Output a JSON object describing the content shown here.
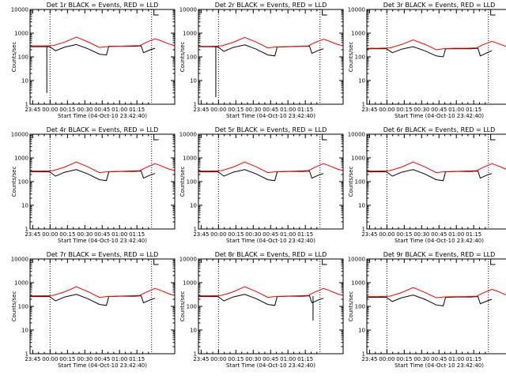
{
  "chart_data": [
    {
      "type": "line",
      "title": "Det 1r BLACK = Events, RED = LLD",
      "xlabel": "Start Time (04-Oct-10 23:42:40)",
      "ylabel": "Counts/sec",
      "yscale": "log",
      "ylim": [
        1,
        10000
      ],
      "xticklabels": [
        "23:45",
        "00:00",
        "00:15",
        "00:30",
        "00:45",
        "01:00",
        "01:15"
      ],
      "yticklabels": [
        "1",
        "10",
        "100",
        "1000",
        "10000"
      ],
      "vertical_markers_min": [
        17.3,
        105
      ],
      "events_drop_min": 14.5,
      "events_drop_value": 3,
      "series": [
        {
          "name": "Events",
          "color": "#000000",
          "x": [
            0,
            14,
            17,
            22,
            30,
            40,
            50,
            60,
            66,
            68,
            78,
            90,
            96,
            98,
            104,
            108
          ],
          "y": [
            270,
            270,
            270,
            180,
            260,
            330,
            220,
            130,
            120,
            280,
            280,
            280,
            290,
            150,
            200,
            230
          ]
        },
        {
          "name": "LLD",
          "color": "#ff0000",
          "x": [
            0,
            10,
            20,
            30,
            40,
            50,
            60,
            66,
            75,
            85,
            95,
            100,
            108,
            112,
            120,
            125
          ],
          "y": [
            290,
            290,
            300,
            420,
            680,
            430,
            250,
            270,
            280,
            290,
            300,
            400,
            580,
            500,
            350,
            300
          ]
        }
      ]
    },
    {
      "type": "line",
      "title": "Det 2r BLACK = Events, RED = LLD",
      "xlabel": "Start Time (04-Oct-10 23:42:40)",
      "ylabel": "Counts/sec",
      "yscale": "log",
      "ylim": [
        1,
        10000
      ],
      "xticklabels": [
        "23:45",
        "00:00",
        "00:15",
        "00:30",
        "00:45",
        "01:00",
        "01:15"
      ],
      "yticklabels": [
        "1",
        "10",
        "100",
        "1000",
        "10000"
      ],
      "vertical_markers_min": [
        17.3,
        105
      ],
      "events_drop_min": 15,
      "events_drop_value": 2,
      "series": [
        {
          "name": "Events",
          "color": "#000000",
          "x": [
            0,
            14,
            17,
            22,
            30,
            40,
            50,
            60,
            66,
            68,
            78,
            90,
            96,
            98,
            104,
            108
          ],
          "y": [
            270,
            270,
            260,
            170,
            250,
            320,
            210,
            120,
            110,
            260,
            270,
            280,
            280,
            140,
            190,
            220
          ]
        },
        {
          "name": "LLD",
          "color": "#ff0000",
          "x": [
            0,
            10,
            20,
            30,
            40,
            50,
            60,
            66,
            75,
            85,
            95,
            100,
            108,
            112,
            120,
            125
          ],
          "y": [
            280,
            280,
            290,
            410,
            660,
            420,
            240,
            260,
            270,
            280,
            290,
            390,
            560,
            480,
            340,
            290
          ]
        }
      ]
    },
    {
      "type": "line",
      "title": "Det 3r BLACK = Events, RED = LLD",
      "xlabel": "Start Time (04-Oct-10 23:42:40)",
      "ylabel": "Counts/sec",
      "yscale": "log",
      "ylim": [
        1,
        10000
      ],
      "xticklabels": [
        "23:45",
        "00:00",
        "00:15",
        "00:30",
        "00:45",
        "01:00",
        "01:15"
      ],
      "yticklabels": [
        "1",
        "10",
        "100",
        "1000",
        "10000"
      ],
      "vertical_markers_min": [
        17.3,
        105
      ],
      "series": [
        {
          "name": "Events",
          "color": "#000000",
          "x": [
            0,
            14,
            17,
            22,
            30,
            40,
            50,
            60,
            66,
            68,
            78,
            90,
            96,
            98,
            104,
            108
          ],
          "y": [
            220,
            220,
            220,
            150,
            210,
            270,
            180,
            110,
            100,
            220,
            220,
            220,
            230,
            110,
            150,
            180
          ]
        },
        {
          "name": "LLD",
          "color": "#ff0000",
          "x": [
            0,
            10,
            20,
            30,
            40,
            50,
            60,
            66,
            75,
            85,
            95,
            100,
            108,
            112,
            120,
            125
          ],
          "y": [
            230,
            230,
            240,
            330,
            520,
            340,
            200,
            220,
            230,
            230,
            240,
            320,
            450,
            390,
            280,
            240
          ]
        }
      ]
    },
    {
      "type": "line",
      "title": "Det 4r BLACK = Events, RED = LLD",
      "xlabel": "Start Time (04-Oct-10 23:42:40)",
      "ylabel": "Counts/sec",
      "yscale": "log",
      "ylim": [
        1,
        10000
      ],
      "xticklabels": [
        "23:45",
        "00:00",
        "00:15",
        "00:30",
        "00:45",
        "01:00",
        "01:15"
      ],
      "yticklabels": [
        "1",
        "10",
        "100",
        "1000",
        "10000"
      ],
      "vertical_markers_min": [
        17.3,
        105
      ],
      "series": [
        {
          "name": "Events",
          "color": "#000000",
          "x": [
            0,
            14,
            17,
            22,
            30,
            40,
            50,
            60,
            66,
            68,
            78,
            90,
            96,
            98,
            104,
            108
          ],
          "y": [
            260,
            260,
            260,
            170,
            250,
            320,
            210,
            120,
            110,
            260,
            270,
            270,
            280,
            140,
            190,
            220
          ]
        },
        {
          "name": "LLD",
          "color": "#ff0000",
          "x": [
            0,
            10,
            20,
            30,
            40,
            50,
            60,
            66,
            75,
            85,
            95,
            100,
            108,
            112,
            120,
            125
          ],
          "y": [
            280,
            280,
            290,
            410,
            670,
            420,
            240,
            260,
            270,
            280,
            290,
            390,
            570,
            490,
            340,
            290
          ]
        }
      ]
    },
    {
      "type": "line",
      "title": "Det 5r BLACK = Events, RED = LLD",
      "xlabel": "Start Time (04-Oct-10 23:42:40)",
      "ylabel": "Counts/sec",
      "yscale": "log",
      "ylim": [
        1,
        10000
      ],
      "xticklabels": [
        "23:45",
        "00:00",
        "00:15",
        "00:30",
        "00:45",
        "01:00",
        "01:15"
      ],
      "yticklabels": [
        "1",
        "10",
        "100",
        "1000",
        "10000"
      ],
      "vertical_markers_min": [
        17.3,
        105
      ],
      "series": [
        {
          "name": "Events",
          "color": "#000000",
          "x": [
            0,
            14,
            17,
            22,
            30,
            40,
            50,
            60,
            66,
            68,
            78,
            90,
            96,
            98,
            104,
            108
          ],
          "y": [
            260,
            260,
            260,
            170,
            250,
            320,
            210,
            120,
            110,
            260,
            270,
            270,
            280,
            140,
            190,
            220
          ]
        },
        {
          "name": "LLD",
          "color": "#ff0000",
          "x": [
            0,
            10,
            20,
            30,
            40,
            50,
            60,
            66,
            75,
            85,
            95,
            100,
            108,
            112,
            120,
            125
          ],
          "y": [
            280,
            280,
            290,
            410,
            670,
            420,
            240,
            260,
            270,
            280,
            290,
            390,
            570,
            490,
            340,
            290
          ]
        }
      ]
    },
    {
      "type": "line",
      "title": "Det 6r BLACK = Events, RED = LLD",
      "xlabel": "Start Time (04-Oct-10 23:42:40)",
      "ylabel": "Counts/sec",
      "yscale": "log",
      "ylim": [
        1,
        10000
      ],
      "xticklabels": [
        "23:45",
        "00:00",
        "00:15",
        "00:30",
        "00:45",
        "01:00",
        "01:15"
      ],
      "yticklabels": [
        "1",
        "10",
        "100",
        "1000",
        "10000"
      ],
      "vertical_markers_min": [
        17.3,
        105
      ],
      "series": [
        {
          "name": "Events",
          "color": "#000000",
          "x": [
            0,
            14,
            17,
            22,
            30,
            40,
            50,
            60,
            66,
            68,
            78,
            90,
            96,
            98,
            104,
            108
          ],
          "y": [
            260,
            260,
            260,
            170,
            250,
            320,
            210,
            120,
            110,
            260,
            270,
            270,
            280,
            140,
            190,
            220
          ]
        },
        {
          "name": "LLD",
          "color": "#ff0000",
          "x": [
            0,
            10,
            20,
            30,
            40,
            50,
            60,
            66,
            75,
            85,
            95,
            100,
            108,
            112,
            120,
            125
          ],
          "y": [
            280,
            280,
            290,
            410,
            670,
            420,
            240,
            260,
            270,
            280,
            290,
            390,
            570,
            490,
            340,
            290
          ]
        }
      ]
    },
    {
      "type": "line",
      "title": "Det 7r BLACK = Events, RED = LLD",
      "xlabel": "Start Time (04-Oct-10 23:42:40)",
      "ylabel": "Counts/sec",
      "yscale": "log",
      "ylim": [
        1,
        10000
      ],
      "xticklabels": [
        "23:45",
        "00:00",
        "00:15",
        "00:30",
        "00:45",
        "01:00",
        "01:15"
      ],
      "yticklabels": [
        "1",
        "10",
        "100",
        "1000",
        "10000"
      ],
      "vertical_markers_min": [
        17.3,
        105
      ],
      "series": [
        {
          "name": "Events",
          "color": "#000000",
          "x": [
            0,
            14,
            17,
            22,
            30,
            40,
            50,
            60,
            66,
            68,
            78,
            90,
            96,
            98,
            104,
            108
          ],
          "y": [
            260,
            260,
            260,
            170,
            250,
            320,
            210,
            120,
            110,
            260,
            270,
            270,
            280,
            140,
            190,
            220
          ]
        },
        {
          "name": "LLD",
          "color": "#ff0000",
          "x": [
            0,
            10,
            20,
            30,
            40,
            50,
            60,
            66,
            75,
            85,
            95,
            100,
            108,
            112,
            120,
            125
          ],
          "y": [
            280,
            280,
            290,
            410,
            670,
            420,
            240,
            260,
            270,
            280,
            290,
            390,
            570,
            490,
            340,
            290
          ]
        }
      ]
    },
    {
      "type": "line",
      "title": "Det 8r BLACK = Events, RED = LLD",
      "xlabel": "Start Time (04-Oct-10 23:42:40)",
      "ylabel": "Counts/sec",
      "yscale": "log",
      "ylim": [
        1,
        10000
      ],
      "xticklabels": [
        "23:45",
        "00:00",
        "00:15",
        "00:30",
        "00:45",
        "01:00",
        "01:15"
      ],
      "yticklabels": [
        "1",
        "10",
        "100",
        "1000",
        "10000"
      ],
      "vertical_markers_min": [
        17.3,
        105
      ],
      "events_drop_min": 99,
      "events_drop_value": 25,
      "series": [
        {
          "name": "Events",
          "color": "#000000",
          "x": [
            0,
            14,
            17,
            22,
            30,
            40,
            50,
            60,
            66,
            68,
            78,
            90,
            96,
            98,
            104,
            108
          ],
          "y": [
            260,
            260,
            260,
            170,
            250,
            320,
            210,
            120,
            110,
            260,
            270,
            270,
            280,
            140,
            190,
            220
          ]
        },
        {
          "name": "LLD",
          "color": "#ff0000",
          "x": [
            0,
            10,
            20,
            30,
            40,
            50,
            60,
            66,
            75,
            85,
            95,
            100,
            108,
            112,
            120,
            125
          ],
          "y": [
            280,
            280,
            290,
            410,
            670,
            420,
            240,
            260,
            270,
            280,
            290,
            390,
            570,
            490,
            340,
            290
          ]
        }
      ]
    },
    {
      "type": "line",
      "title": "Det 9r BLACK = Events, RED = LLD",
      "xlabel": "Start Time (04-Oct-10 23:42:40)",
      "ylabel": "Counts/sec",
      "yscale": "log",
      "ylim": [
        1,
        10000
      ],
      "xticklabels": [
        "23:45",
        "00:00",
        "00:15",
        "00:30",
        "00:45",
        "01:00",
        "01:15"
      ],
      "yticklabels": [
        "1",
        "10",
        "100",
        "1000",
        "10000"
      ],
      "vertical_markers_min": [
        17.3,
        105
      ],
      "series": [
        {
          "name": "Events",
          "color": "#000000",
          "x": [
            0,
            14,
            17,
            22,
            30,
            40,
            50,
            60,
            66,
            68,
            78,
            90,
            96,
            98,
            104,
            108
          ],
          "y": [
            240,
            240,
            240,
            160,
            230,
            300,
            200,
            115,
            105,
            240,
            250,
            250,
            260,
            130,
            170,
            200
          ]
        },
        {
          "name": "LLD",
          "color": "#ff0000",
          "x": [
            0,
            10,
            20,
            30,
            40,
            50,
            60,
            66,
            75,
            85,
            95,
            100,
            108,
            112,
            120,
            125
          ],
          "y": [
            260,
            260,
            270,
            380,
            620,
            390,
            230,
            250,
            255,
            260,
            270,
            360,
            520,
            450,
            310,
            270
          ]
        }
      ]
    }
  ]
}
